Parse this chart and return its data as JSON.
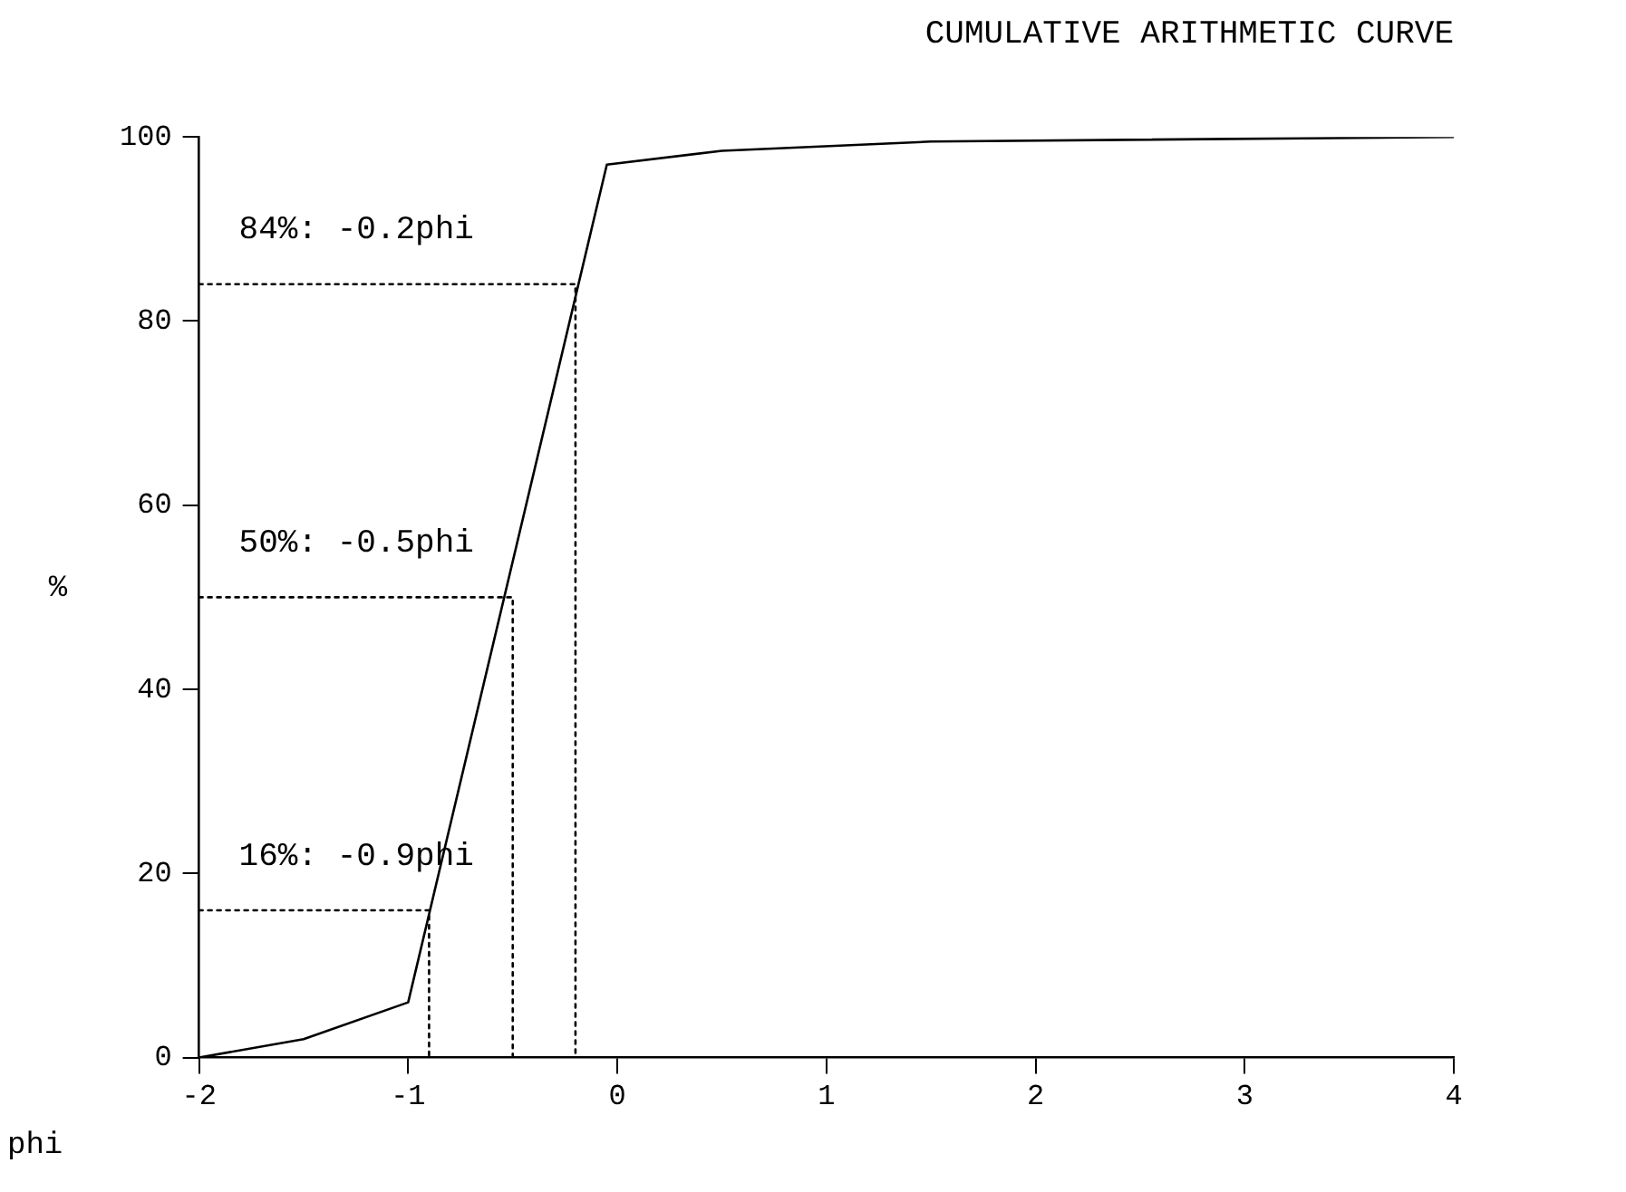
{
  "chart_data": {
    "type": "line",
    "title": "CUMULATIVE ARITHMETIC CURVE",
    "xlabel": "phi",
    "ylabel": "%",
    "xlim": [
      -2,
      4
    ],
    "xticks": [
      -2,
      -1,
      0,
      1,
      2,
      3,
      4
    ],
    "ylim": [
      0,
      100
    ],
    "yticks": [
      0,
      20,
      40,
      60,
      80,
      100
    ],
    "grid": false,
    "legend": false,
    "marker": "none",
    "series": [
      {
        "color": "#000000",
        "line_style": "solid",
        "x": [
          -2,
          -1.5,
          -1,
          -0.05,
          0.5,
          1.5,
          4
        ],
        "values": [
          0,
          2,
          6,
          97,
          98.5,
          99.5,
          100
        ]
      },
      {
        "color": "#000000",
        "line_style": "dotted",
        "x": [
          -2,
          -0.2,
          -0.2
        ],
        "values": [
          84,
          84,
          0
        ]
      },
      {
        "color": "#000000",
        "line_style": "dotted",
        "x": [
          -2,
          -0.5,
          -0.5
        ],
        "values": [
          50,
          50,
          0
        ]
      },
      {
        "color": "#000000",
        "line_style": "dotted",
        "x": [
          -2,
          -0.9,
          -0.9
        ],
        "values": [
          16,
          16,
          0
        ]
      }
    ],
    "annotations": [
      "84%: -0.2phi",
      "50%: -0.5phi",
      "16%: -0.9phi"
    ]
  }
}
